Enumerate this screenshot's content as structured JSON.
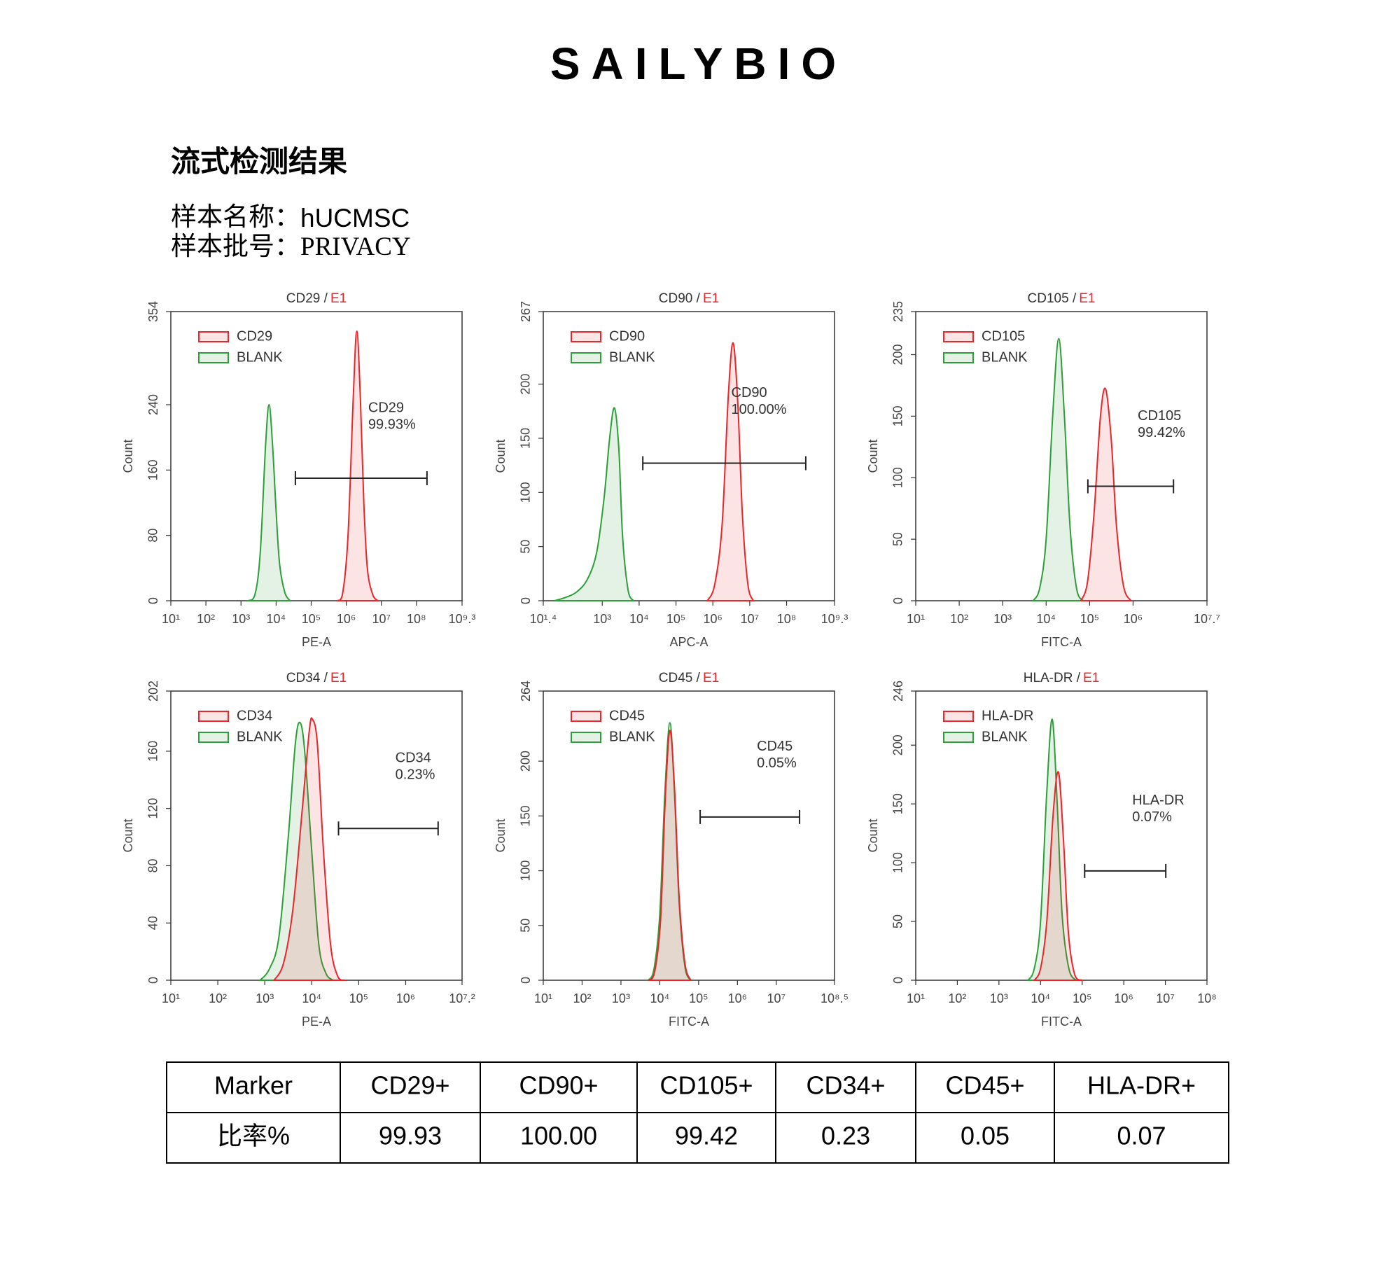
{
  "header": {
    "title": "SAILYBIO",
    "section": "流式检测结果",
    "sample": [
      {
        "label": "样本名称：",
        "value": "hUCMSC"
      },
      {
        "label": "样本批号：",
        "value": "PRIVACY"
      }
    ]
  },
  "chart_data": [
    {
      "type": "area",
      "title": "CD29 /",
      "gate": "E1",
      "gate_color": "#e8262b",
      "xlabel": "PE-A",
      "ylabel": "Count",
      "xscale": "log",
      "xlim": [
        10,
        1995262315
      ],
      "xticks": [
        {
          "value": 10,
          "label": "10¹"
        },
        {
          "value": 100,
          "label": "10²"
        },
        {
          "value": 1000,
          "label": "10³"
        },
        {
          "value": 10000,
          "label": "10⁴"
        },
        {
          "value": 100000,
          "label": "10⁵"
        },
        {
          "value": 1000000,
          "label": "10⁶"
        },
        {
          "value": 10000000,
          "label": "10⁷"
        },
        {
          "value": 100000000,
          "label": "10⁸"
        },
        {
          "value": 1995262315,
          "label": "10⁹.³"
        }
      ],
      "ylim": [
        0,
        354
      ],
      "yticks": [
        0,
        80,
        160,
        240,
        354
      ],
      "legend": "upper left",
      "series": [
        {
          "name": "CD29",
          "color": "#e8262b",
          "x": [
            562341,
            794328,
            1122018,
            1584893,
            1995262,
            2511886,
            3162278,
            3981072,
            5623413,
            7943282
          ],
          "values": [
            0,
            10,
            80,
            250,
            330,
            250,
            120,
            40,
            8,
            0
          ]
        },
        {
          "name": "BLANK",
          "color": "#2e9e3a",
          "x": [
            1585,
            2512,
            3548,
            5012,
            6310,
            7943,
            10000,
            12589,
            17783,
            25119
          ],
          "values": [
            0,
            8,
            60,
            190,
            240,
            190,
            110,
            45,
            10,
            0
          ]
        }
      ],
      "gate_marker": {
        "label": "CD29",
        "value": 99.93,
        "value_label": "99.93%",
        "xrange": [
          35481,
          199526231
        ],
        "y": 150
      }
    },
    {
      "type": "area",
      "title": "CD90 /",
      "gate": "E1",
      "gate_color": "#e8262b",
      "xlabel": "APC-A",
      "ylabel": "Count",
      "xscale": "log",
      "xlim": [
        25.119,
        1995262315
      ],
      "xticks": [
        {
          "value": 25.119,
          "label": "10¹.⁴"
        },
        {
          "value": 1000,
          "label": "10³"
        },
        {
          "value": 10000,
          "label": "10⁴"
        },
        {
          "value": 100000,
          "label": "10⁵"
        },
        {
          "value": 1000000,
          "label": "10⁶"
        },
        {
          "value": 10000000,
          "label": "10⁷"
        },
        {
          "value": 100000000,
          "label": "10⁸"
        },
        {
          "value": 1995262315,
          "label": "10⁹.³"
        }
      ],
      "ylim": [
        0,
        267
      ],
      "yticks": [
        0,
        50,
        100,
        150,
        200,
        267
      ],
      "legend": "upper left",
      "series": [
        {
          "name": "CD90",
          "color": "#e8262b",
          "x": [
            707946,
            1122018,
            1778279,
            2630268,
            3548134,
            4786301,
            6309573,
            8912509,
            12589254
          ],
          "values": [
            0,
            15,
            70,
            190,
            238,
            180,
            80,
            15,
            0
          ]
        },
        {
          "name": "BLANK",
          "color": "#2e9e3a",
          "x": [
            50,
            100,
            200,
            398,
            708,
            1122,
            1585,
            2138,
            2818,
            3548,
            5012,
            7079
          ],
          "values": [
            0,
            3,
            8,
            20,
            45,
            95,
            150,
            178,
            140,
            60,
            10,
            0
          ]
        }
      ],
      "gate_marker": {
        "label": "CD90",
        "value": 100.0,
        "value_label": "100.00%",
        "xrange": [
          12589,
          331131121
        ],
        "y": 127
      }
    },
    {
      "type": "area",
      "title": "CD105 /",
      "gate": "E1",
      "gate_color": "#e8262b",
      "xlabel": "FITC-A",
      "ylabel": "Count",
      "xscale": "log",
      "xlim": [
        10,
        50118723
      ],
      "xticks": [
        {
          "value": 10,
          "label": "10¹"
        },
        {
          "value": 100,
          "label": "10²"
        },
        {
          "value": 1000,
          "label": "10³"
        },
        {
          "value": 10000,
          "label": "10⁴"
        },
        {
          "value": 100000,
          "label": "10⁵"
        },
        {
          "value": 1000000,
          "label": "10⁶"
        },
        {
          "value": 50118723,
          "label": "10⁷.⁷"
        }
      ],
      "ylim": [
        0,
        235
      ],
      "yticks": [
        0,
        50,
        100,
        150,
        200,
        235
      ],
      "legend": "upper left",
      "series": [
        {
          "name": "CD105",
          "color": "#e8262b",
          "x": [
            63096,
            89125,
            125893,
            177828,
            234423,
            316228,
            416869,
            602560,
            891251
          ],
          "values": [
            0,
            15,
            70,
            150,
            172,
            130,
            60,
            12,
            0
          ]
        },
        {
          "name": "BLANK",
          "color": "#2e9e3a",
          "x": [
            5012,
            7079,
            10000,
            14125,
            19498,
            26303,
            35481,
            50119,
            70795
          ],
          "values": [
            0,
            10,
            50,
            150,
            213,
            150,
            60,
            10,
            0
          ]
        }
      ],
      "gate_marker": {
        "label": "CD105",
        "value": 99.42,
        "value_label": "99.42%",
        "xrange": [
          91201,
          8511380
        ],
        "y": 93
      }
    },
    {
      "type": "area",
      "title": "CD34 /",
      "gate": "E1",
      "gate_color": "#e8262b",
      "xlabel": "PE-A",
      "ylabel": "Count",
      "xscale": "log",
      "xlim": [
        10,
        15848932
      ],
      "xticks": [
        {
          "value": 10,
          "label": "10¹"
        },
        {
          "value": 100,
          "label": "10²"
        },
        {
          "value": 1000,
          "label": "10³"
        },
        {
          "value": 10000,
          "label": "10⁴"
        },
        {
          "value": 100000,
          "label": "10⁵"
        },
        {
          "value": 1000000,
          "label": "10⁶"
        },
        {
          "value": 15848932,
          "label": "10⁷.²"
        }
      ],
      "ylim": [
        0,
        202
      ],
      "yticks": [
        0,
        40,
        80,
        120,
        160,
        202
      ],
      "legend": "upper left",
      "series": [
        {
          "name": "CD34",
          "color": "#e8262b",
          "x": [
            1585,
            2512,
            3981,
            6310,
            8913,
            10471,
            13183,
            17783,
            25119,
            35481,
            50119
          ],
          "values": [
            0,
            12,
            50,
            120,
            175,
            182,
            165,
            90,
            25,
            3,
            0
          ]
        },
        {
          "name": "BLANK",
          "color": "#2e9e3a",
          "x": [
            794,
            1259,
            1995,
            3162,
            4467,
            5623,
            7079,
            10000,
            14125,
            19953,
            28184
          ],
          "values": [
            0,
            8,
            30,
            100,
            165,
            180,
            160,
            90,
            25,
            5,
            0
          ]
        }
      ],
      "gate_marker": {
        "label": "CD34",
        "value": 0.23,
        "value_label": "0.23%",
        "xrange": [
          37154,
          4897788
        ],
        "y": 106
      }
    },
    {
      "type": "area",
      "title": "CD45 /",
      "gate": "E1",
      "gate_color": "#e8262b",
      "xlabel": "FITC-A",
      "ylabel": "Count",
      "xscale": "log",
      "xlim": [
        10,
        316227766
      ],
      "xticks": [
        {
          "value": 10,
          "label": "10¹"
        },
        {
          "value": 100,
          "label": "10²"
        },
        {
          "value": 1000,
          "label": "10³"
        },
        {
          "value": 10000,
          "label": "10⁴"
        },
        {
          "value": 100000,
          "label": "10⁵"
        },
        {
          "value": 1000000,
          "label": "10⁶"
        },
        {
          "value": 10000000,
          "label": "10⁷"
        },
        {
          "value": 316227766,
          "label": "10⁸.⁵"
        }
      ],
      "ylim": [
        0,
        264
      ],
      "yticks": [
        0,
        50,
        100,
        150,
        200,
        264
      ],
      "legend": "upper left",
      "series": [
        {
          "name": "CD45",
          "color": "#e8262b",
          "x": [
            5248,
            7413,
            10471,
            13804,
            18197,
            23988,
            31623,
            44668,
            63096
          ],
          "values": [
            0,
            8,
            55,
            165,
            228,
            175,
            75,
            15,
            0
          ]
        },
        {
          "name": "BLANK",
          "color": "#2e9e3a",
          "x": [
            5012,
            7079,
            10000,
            13490,
            18197,
            23988,
            31623,
            44668,
            63096
          ],
          "values": [
            0,
            10,
            60,
            170,
            235,
            170,
            70,
            12,
            0
          ]
        }
      ],
      "gate_marker": {
        "label": "CD45",
        "value": 0.05,
        "value_label": "0.05%",
        "xrange": [
          109648,
          39810717
        ],
        "y": 149
      }
    },
    {
      "type": "area",
      "title": "HLA-DR /",
      "gate": "E1",
      "gate_color": "#e8262b",
      "xlabel": "FITC-A",
      "ylabel": "Count",
      "xscale": "log",
      "xlim": [
        10,
        100000000
      ],
      "xticks": [
        {
          "value": 10,
          "label": "10¹"
        },
        {
          "value": 100,
          "label": "10²"
        },
        {
          "value": 1000,
          "label": "10³"
        },
        {
          "value": 10000,
          "label": "10⁴"
        },
        {
          "value": 100000,
          "label": "10⁵"
        },
        {
          "value": 1000000,
          "label": "10⁶"
        },
        {
          "value": 10000000,
          "label": "10⁷"
        },
        {
          "value": 100000000,
          "label": "10⁸"
        }
      ],
      "ylim": [
        0,
        246
      ],
      "yticks": [
        0,
        50,
        100,
        150,
        200,
        246
      ],
      "legend": "upper left",
      "series": [
        {
          "name": "HLA-DR",
          "color": "#e8262b",
          "x": [
            7079,
            10000,
            14125,
            19953,
            26915,
            35481,
            46774,
            66069,
            100000
          ],
          "values": [
            0,
            10,
            50,
            140,
            177,
            120,
            40,
            5,
            0
          ]
        },
        {
          "name": "BLANK",
          "color": "#2e9e3a",
          "x": [
            5012,
            7079,
            10000,
            14125,
            19055,
            25119,
            33113,
            47863,
            70795
          ],
          "values": [
            0,
            10,
            50,
            160,
            222,
            150,
            55,
            10,
            0
          ]
        }
      ],
      "gate_marker": {
        "label": "HLA-DR",
        "value": 0.07,
        "value_label": "0.07%",
        "xrange": [
          114815,
          10232930
        ],
        "y": 93
      }
    }
  ],
  "table": {
    "columns": [
      "Marker",
      "CD29+",
      "CD90+",
      "CD105+",
      "CD34+",
      "CD45+",
      "HLA-DR+"
    ],
    "rows": [
      [
        "比率%",
        "99.93",
        "100.00",
        "99.42",
        "0.23",
        "0.05",
        "0.07"
      ]
    ]
  }
}
